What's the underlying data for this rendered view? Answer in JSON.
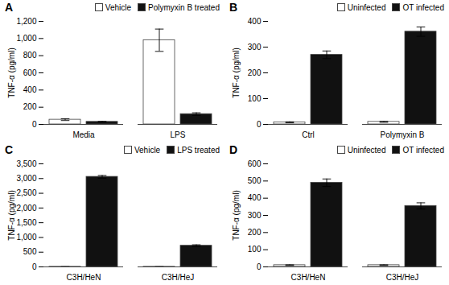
{
  "chart_data": [
    {
      "type": "bar",
      "title": "A",
      "ylabel": "TNF-α (pg/ml)",
      "categories": [
        "Media",
        "LPS"
      ],
      "series": [
        {
          "name": "Vehicle",
          "color": "#ffffff",
          "values": [
            55,
            980
          ],
          "errors": [
            10,
            130
          ]
        },
        {
          "name": "Polymyxin B treated",
          "color": "#111111",
          "values": [
            30,
            120
          ],
          "errors": [
            5,
            15
          ]
        }
      ],
      "ylim": [
        0,
        1200
      ],
      "yticks": [
        0,
        200,
        400,
        600,
        800,
        1000,
        1200
      ],
      "legend": "upper right"
    },
    {
      "type": "bar",
      "title": "B",
      "ylabel": "TNF-α (pg/ml)",
      "categories": [
        "Ctrl",
        "Polymyxin B"
      ],
      "series": [
        {
          "name": "Uninfected",
          "color": "#ffffff",
          "values": [
            8,
            10
          ],
          "errors": [
            2,
            2
          ]
        },
        {
          "name": "OT infected",
          "color": "#111111",
          "values": [
            270,
            360
          ],
          "errors": [
            15,
            18
          ]
        }
      ],
      "ylim": [
        0,
        400
      ],
      "yticks": [
        0,
        100,
        200,
        300,
        400
      ],
      "legend": "upper right"
    },
    {
      "type": "bar",
      "title": "C",
      "ylabel": "TNF-α (pg/ml)",
      "categories": [
        "C3H/HeN",
        "C3H/HeJ"
      ],
      "series": [
        {
          "name": "Vehicle",
          "color": "#ffffff",
          "values": [
            5,
            5
          ],
          "errors": [
            1,
            1
          ]
        },
        {
          "name": "LPS treated",
          "color": "#111111",
          "values": [
            3060,
            720
          ],
          "errors": [
            45,
            30
          ]
        }
      ],
      "ylim": [
        0,
        3500
      ],
      "yticks": [
        0,
        500,
        1000,
        1500,
        2000,
        2500,
        3000,
        3500
      ],
      "legend": "upper right"
    },
    {
      "type": "bar",
      "title": "D",
      "ylabel": "TNF-α (pg/ml)",
      "categories": [
        "C3H/HeN",
        "C3H/HeJ"
      ],
      "series": [
        {
          "name": "Uninfected",
          "color": "#ffffff",
          "values": [
            10,
            10
          ],
          "errors": [
            2,
            2
          ]
        },
        {
          "name": "OT infected",
          "color": "#111111",
          "values": [
            490,
            355
          ],
          "errors": [
            22,
            18
          ]
        }
      ],
      "ylim": [
        0,
        600
      ],
      "yticks": [
        0,
        100,
        200,
        300,
        400,
        500,
        600
      ],
      "legend": "upper right"
    }
  ]
}
